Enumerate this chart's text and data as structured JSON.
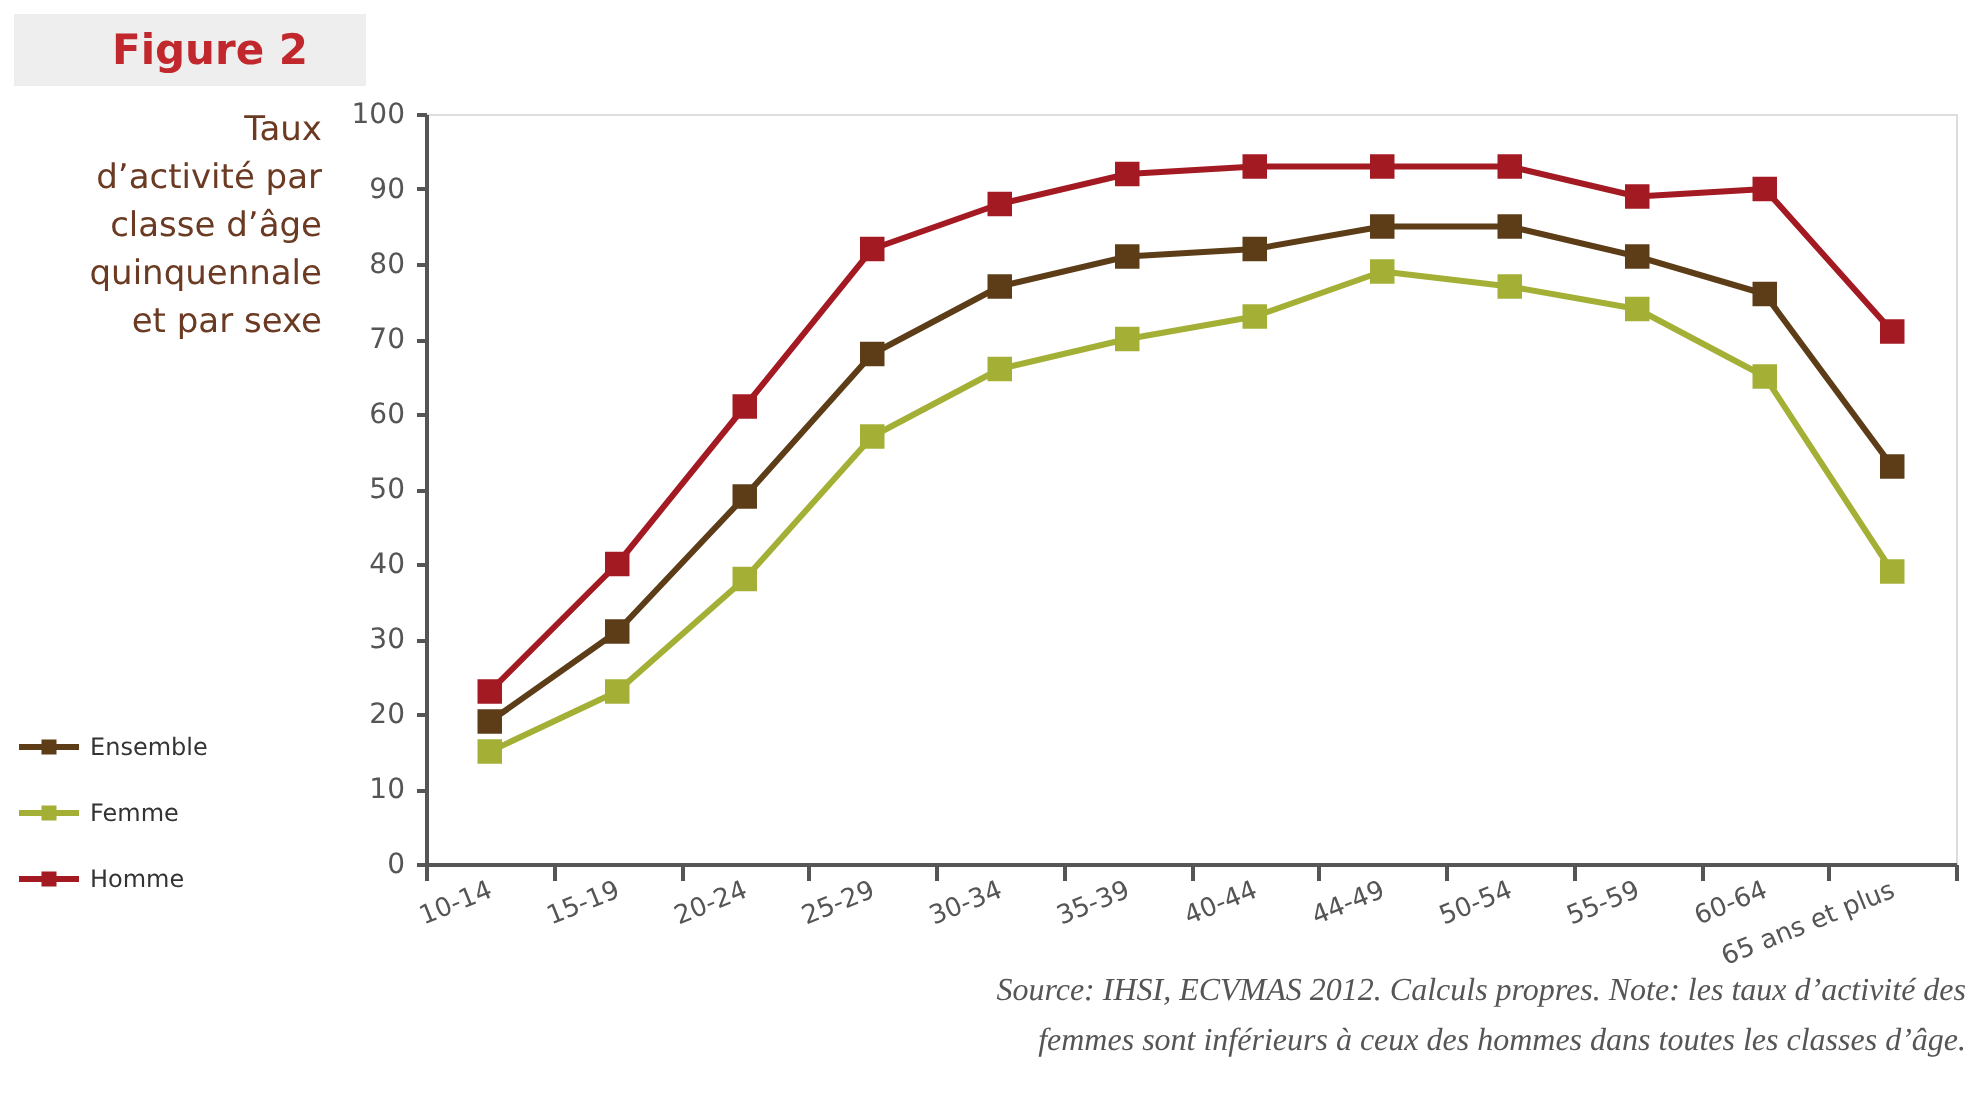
{
  "chart_data": {
    "type": "line",
    "title": "Figure 2",
    "subtitle": "Taux d’activité par classe d’âge quinquennale et par sexe",
    "categories": [
      "10-14",
      "15-19",
      "20-24",
      "25-29",
      "30-34",
      "35-39",
      "40-44",
      "44-49",
      "50-54",
      "55-59",
      "60-64",
      "65 ans et plus"
    ],
    "series": [
      {
        "name": "Ensemble",
        "color": "#5c3d17",
        "values": [
          19,
          31,
          49,
          68,
          77,
          81,
          82,
          85,
          85,
          81,
          76,
          53
        ]
      },
      {
        "name": "Femme",
        "color": "#a3b035",
        "values": [
          15,
          23,
          38,
          57,
          66,
          70,
          73,
          79,
          77,
          74,
          65,
          39
        ]
      },
      {
        "name": "Homme",
        "color": "#a31a22",
        "values": [
          23,
          40,
          61,
          82,
          88,
          92,
          93,
          93,
          93,
          89,
          90,
          71
        ]
      }
    ],
    "ylim": [
      0,
      100
    ],
    "yticks": [
      0,
      10,
      20,
      30,
      40,
      50,
      60,
      70,
      80,
      90,
      100
    ],
    "grid": false,
    "legend": "left",
    "marker": "square",
    "line_style": "solid",
    "annotations": [
      "Source: IHSI, ECVMAS 2012. Calculs propres. Note: les taux d’activité des femmes sont inférieurs à ceux des hommes dans toutes les classes d’âge."
    ]
  }
}
